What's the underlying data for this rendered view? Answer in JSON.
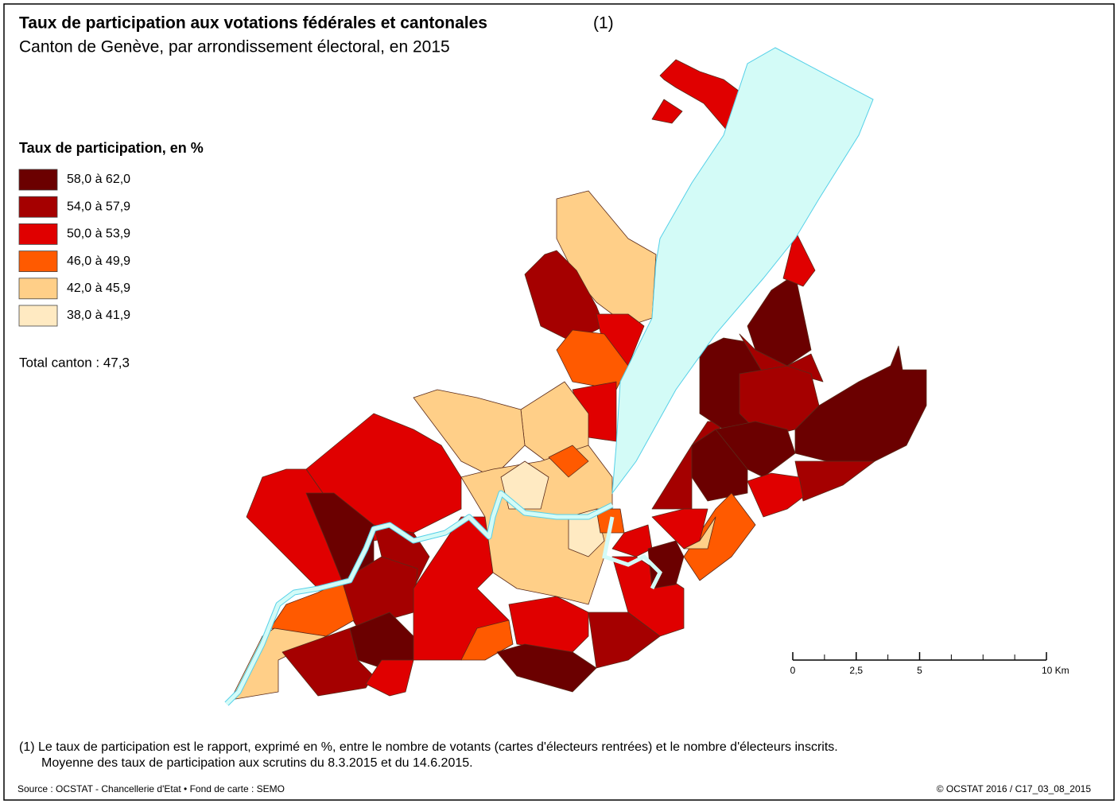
{
  "title": "Taux de participation aux votations fédérales et cantonales",
  "title_note": "(1)",
  "subtitle": "Canton de Genève, par arrondissement électoral, en 2015",
  "legend": {
    "title": "Taux de participation, en %",
    "items": [
      {
        "label": "58,0 à 62,0",
        "color": "#6b0000"
      },
      {
        "label": "54,0 à 57,9",
        "color": "#a50000"
      },
      {
        "label": "50,0 à 53,9",
        "color": "#e00000"
      },
      {
        "label": "46,0 à 49,9",
        "color": "#ff5a00"
      },
      {
        "label": "42,0 à 45,9",
        "color": "#ffcf88"
      },
      {
        "label": "38,0 à 41,9",
        "color": "#ffeac2"
      }
    ]
  },
  "total": "Total canton : 47,3",
  "scale": {
    "range": [
      0,
      10
    ],
    "ticks": [
      0,
      {
        "value": 2.5,
        "label": "2,5"
      },
      5,
      {
        "value": 10,
        "label": "10 Km"
      }
    ]
  },
  "footnote": [
    "(1) Le taux de participation est le rapport, exprimé en %, entre le nombre de votants (cartes d'électeurs rentrées) et le nombre d'électeurs inscrits.",
    "Moyenne des taux de participation aux scrutins du 8.3.2015 et du 14.6.2015."
  ],
  "source": "Source : OCSTAT - Chancellerie d'Etat • Fond de carte : SEMO",
  "copyright": "© OCSTAT 2016 / C17_03_08_2015"
}
